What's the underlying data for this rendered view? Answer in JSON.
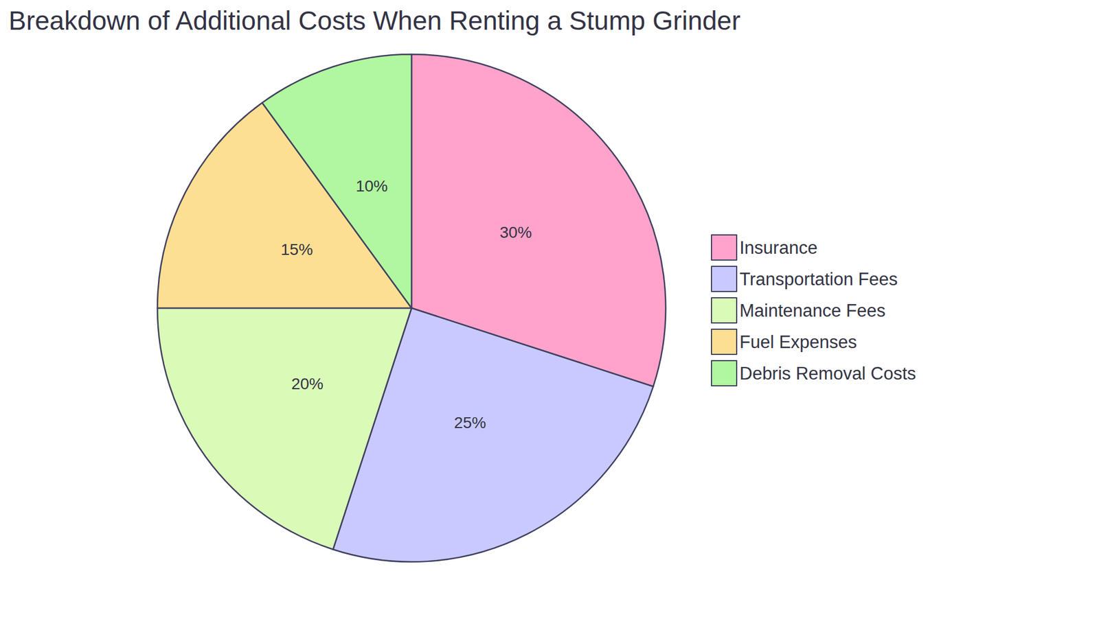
{
  "chart_data": {
    "type": "pie",
    "title": "Breakdown of Additional Costs When Renting a Stump Grinder",
    "categories": [
      "Insurance",
      "Transportation Fees",
      "Maintenance Fees",
      "Fuel Expenses",
      "Debris Removal Costs"
    ],
    "values": [
      30,
      25,
      20,
      15,
      10
    ],
    "value_labels": [
      "30%",
      "25%",
      "20%",
      "15%",
      "10%"
    ],
    "colors": [
      "#ffa3cb",
      "#c8caff",
      "#dafab8",
      "#fddf93",
      "#b1f79f"
    ],
    "data_labels": true,
    "legend": "right"
  }
}
